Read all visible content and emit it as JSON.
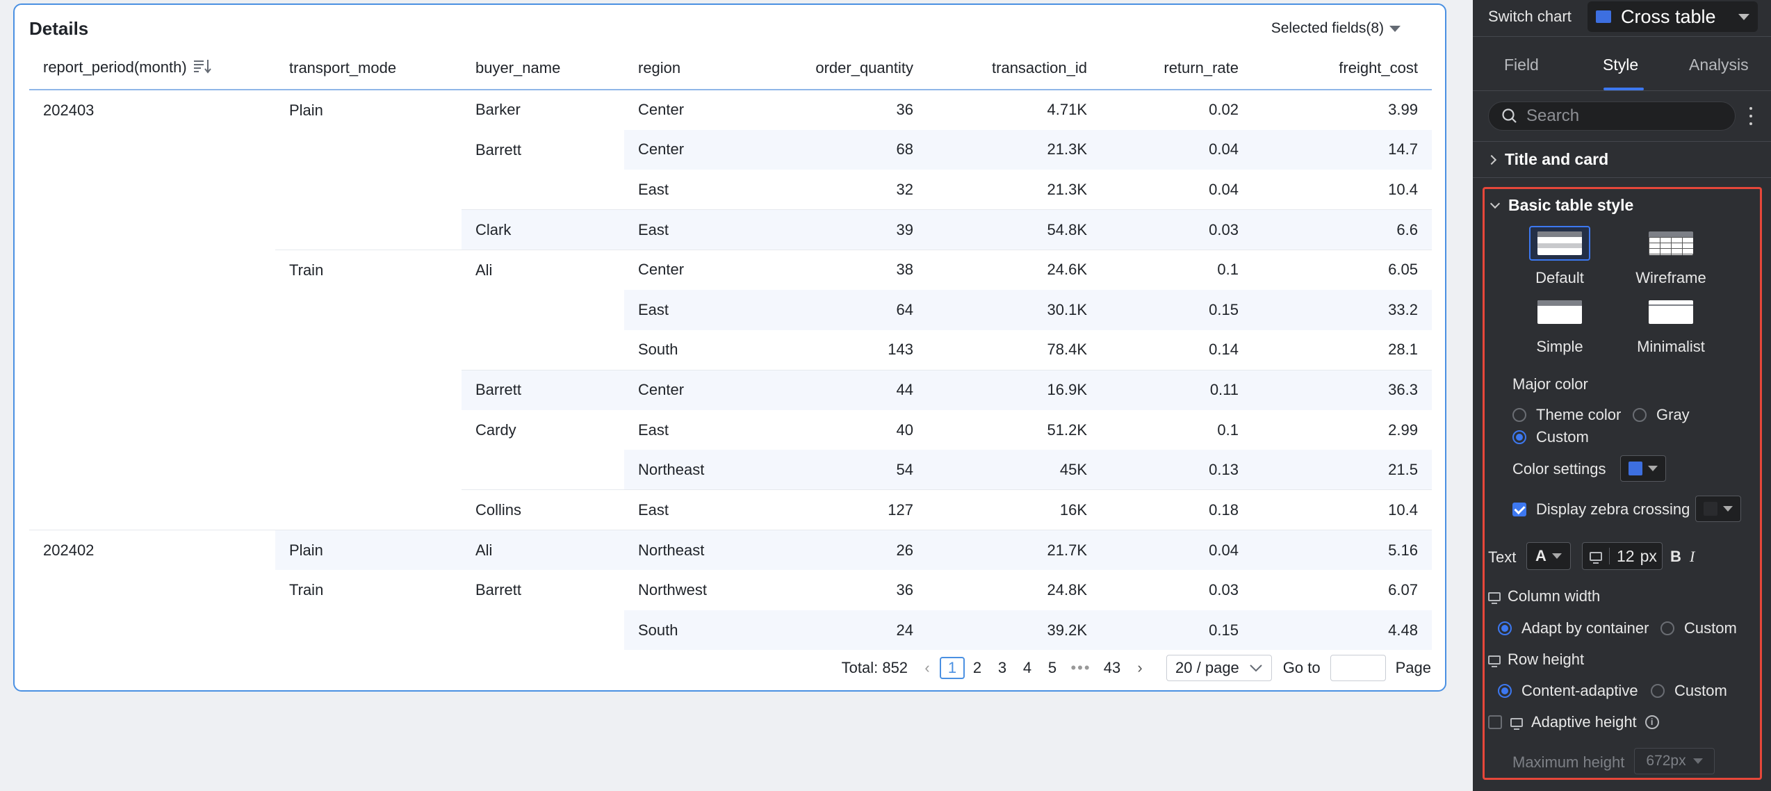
{
  "card": {
    "title": "Details",
    "selected_fields": "Selected fields(8)"
  },
  "table": {
    "columns": [
      "report_period(month)",
      "transport_mode",
      "buyer_name",
      "region",
      "order_quantity",
      "transaction_id",
      "return_rate",
      "freight_cost"
    ],
    "rows": [
      {
        "period": "202403",
        "mode": "Plain",
        "buyer": "Barker",
        "region": "Center",
        "qty": "36",
        "tid": "4.71K",
        "rr": "0.02",
        "fc": "3.99"
      },
      {
        "period": "",
        "mode": "",
        "buyer": "Barrett",
        "region": "Center",
        "qty": "68",
        "tid": "21.3K",
        "rr": "0.04",
        "fc": "14.7"
      },
      {
        "period": "",
        "mode": "",
        "buyer": "",
        "region": "East",
        "qty": "32",
        "tid": "21.3K",
        "rr": "0.04",
        "fc": "10.4"
      },
      {
        "period": "",
        "mode": "",
        "buyer": "Clark",
        "region": "East",
        "qty": "39",
        "tid": "54.8K",
        "rr": "0.03",
        "fc": "6.6"
      },
      {
        "period": "",
        "mode": "Train",
        "buyer": "Ali",
        "region": "Center",
        "qty": "38",
        "tid": "24.6K",
        "rr": "0.1",
        "fc": "6.05"
      },
      {
        "period": "",
        "mode": "",
        "buyer": "",
        "region": "East",
        "qty": "64",
        "tid": "30.1K",
        "rr": "0.15",
        "fc": "33.2"
      },
      {
        "period": "",
        "mode": "",
        "buyer": "",
        "region": "South",
        "qty": "143",
        "tid": "78.4K",
        "rr": "0.14",
        "fc": "28.1"
      },
      {
        "period": "",
        "mode": "",
        "buyer": "Barrett",
        "region": "Center",
        "qty": "44",
        "tid": "16.9K",
        "rr": "0.11",
        "fc": "36.3"
      },
      {
        "period": "",
        "mode": "",
        "buyer": "Cardy",
        "region": "East",
        "qty": "40",
        "tid": "51.2K",
        "rr": "0.1",
        "fc": "2.99"
      },
      {
        "period": "",
        "mode": "",
        "buyer": "",
        "region": "Northeast",
        "qty": "54",
        "tid": "45K",
        "rr": "0.13",
        "fc": "21.5"
      },
      {
        "period": "",
        "mode": "",
        "buyer": "Collins",
        "region": "East",
        "qty": "127",
        "tid": "16K",
        "rr": "0.18",
        "fc": "10.4"
      },
      {
        "period": "202402",
        "mode": "Plain",
        "buyer": "Ali",
        "region": "Northeast",
        "qty": "26",
        "tid": "21.7K",
        "rr": "0.04",
        "fc": "5.16"
      },
      {
        "period": "",
        "mode": "Train",
        "buyer": "Barrett",
        "region": "Northwest",
        "qty": "36",
        "tid": "24.8K",
        "rr": "0.03",
        "fc": "6.07"
      },
      {
        "period": "",
        "mode": "",
        "buyer": "",
        "region": "South",
        "qty": "24",
        "tid": "39.2K",
        "rr": "0.15",
        "fc": "4.48"
      }
    ]
  },
  "pager": {
    "total": "Total: 852",
    "pages": [
      "1",
      "2",
      "3",
      "4",
      "5"
    ],
    "ellipsis": "•••",
    "last_page": "43",
    "page_size": "20 / page",
    "goto_label": "Go to",
    "goto_value": "",
    "page_label": "Page"
  },
  "panel": {
    "switch_chart_label": "Switch chart",
    "chart_type": "Cross table",
    "tabs": [
      "Field",
      "Style",
      "Analysis"
    ],
    "active_tab": "Style",
    "search_placeholder": "Search",
    "section_title_card": "Title and card",
    "section_basic": "Basic table style",
    "styles": [
      "Default",
      "Wireframe",
      "Simple",
      "Minimalist"
    ],
    "selected_style": "Default",
    "major_color_label": "Major color",
    "major_color_options": [
      "Theme color",
      "Gray",
      "Custom"
    ],
    "major_color_selected": "Custom",
    "color_settings_label": "Color settings",
    "color_value": "#3d6fe0",
    "zebra_label": "Display zebra crossing",
    "zebra_checked": true,
    "text_label": "Text",
    "font_glyph": "A",
    "font_size_value": "12",
    "font_size_unit": "px",
    "bold_glyph": "B",
    "italic_glyph": "I",
    "column_width_label": "Column width",
    "column_width_options": [
      "Adapt by container",
      "Custom"
    ],
    "column_width_selected": "Adapt by container",
    "row_height_label": "Row height",
    "row_height_options": [
      "Content-adaptive",
      "Custom"
    ],
    "row_height_selected": "Content-adaptive",
    "adaptive_height_label": "Adaptive height",
    "adaptive_height_checked": false,
    "max_height_label": "Maximum height",
    "max_height_value": "672px"
  }
}
